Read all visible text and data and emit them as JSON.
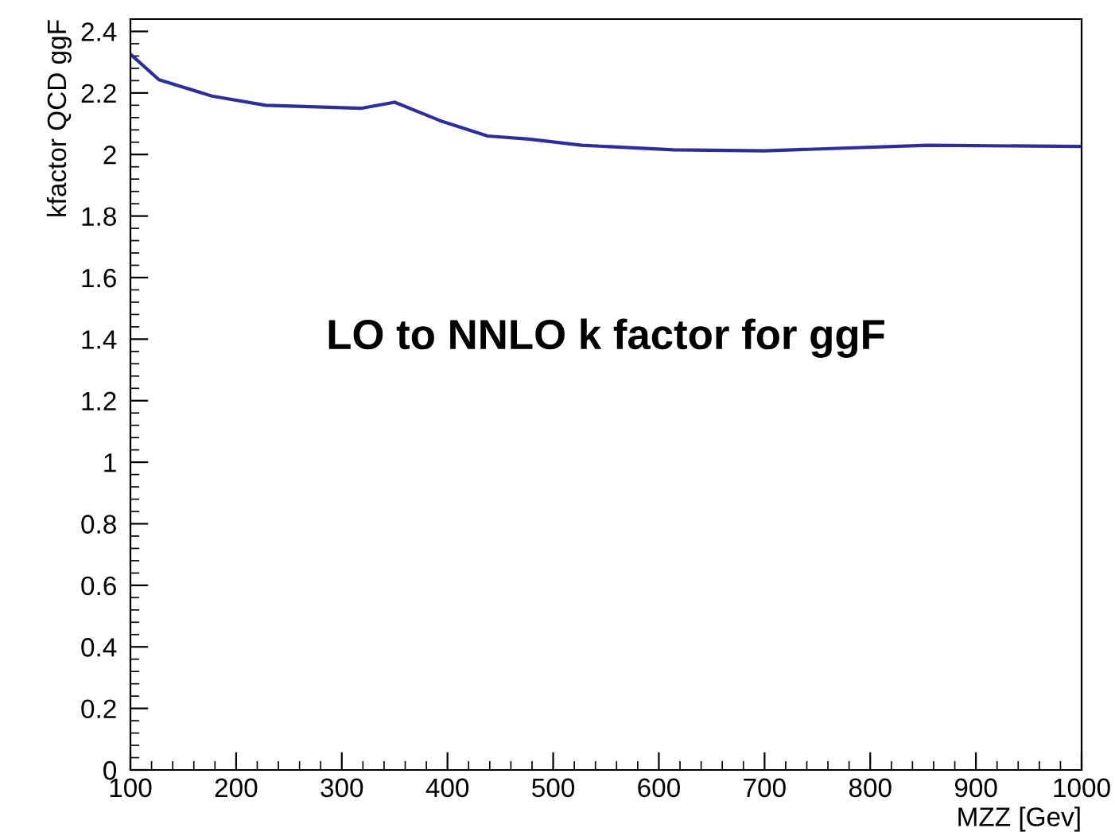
{
  "chart_data": {
    "type": "line",
    "xlabel": "MZZ [Gev]",
    "ylabel": "kfactor QCD ggF",
    "annotations": [
      "LO to NNLO k factor for ggF"
    ],
    "x": [
      100,
      127,
      177,
      228,
      318,
      350,
      393,
      438,
      477,
      527,
      614,
      700,
      855,
      1000
    ],
    "series": [
      {
        "color": "#2e2e9a",
        "values": [
          2.326,
          2.243,
          2.19,
          2.16,
          2.15,
          2.17,
          2.11,
          2.06,
          2.05,
          2.03,
          2.015,
          2.012,
          2.03,
          2.026
        ]
      }
    ],
    "xlim": [
      100,
      1000
    ],
    "xticks": [
      100,
      200,
      300,
      400,
      500,
      600,
      700,
      800,
      900,
      1000
    ],
    "ylim": [
      0,
      2.44
    ],
    "yticks": [
      0,
      0.2,
      0.4,
      0.6,
      0.8,
      1,
      1.2,
      1.4,
      1.6,
      1.8,
      2,
      2.2,
      2.4
    ],
    "grid": false,
    "legend": false,
    "line_style": "solid",
    "marker": "none"
  }
}
